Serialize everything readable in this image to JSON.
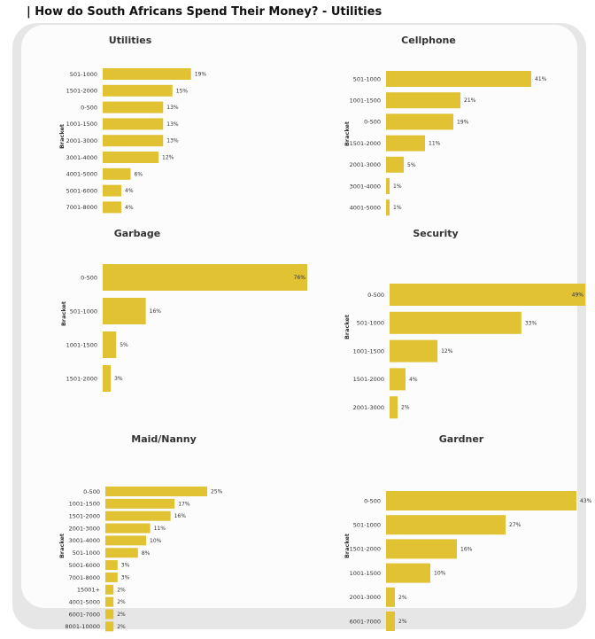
{
  "page": {
    "title": "| How do South Africans Spend Their Money? - Utilities"
  },
  "colors": {
    "bar": "#e0c232",
    "card": "#fcfcfc",
    "panel": "#e6e6e6"
  },
  "chart_data": [
    {
      "id": "utilities",
      "type": "bar",
      "orientation": "horizontal",
      "title": "Utilities",
      "ylabel": "Bracket",
      "categories": [
        "501-1000",
        "1501-2000",
        "0-500",
        "1001-1500",
        "2001-3000",
        "3001-4000",
        "4001-5000",
        "5001-6000",
        "7001-8000"
      ],
      "values": [
        19,
        15,
        13,
        13,
        13,
        12,
        6,
        4,
        4
      ],
      "labels": [
        "19%",
        "15%",
        "13%",
        "13%",
        "13%",
        "12%",
        "6%",
        "4%",
        "4%"
      ],
      "xlim": [
        0,
        40
      ]
    },
    {
      "id": "cellphone",
      "type": "bar",
      "orientation": "horizontal",
      "title": "Cellphone",
      "ylabel": "Bracket",
      "categories": [
        "501-1000",
        "1001-1500",
        "0-500",
        "1501-2000",
        "2001-3000",
        "3001-4000",
        "4001-5000"
      ],
      "values": [
        41,
        21,
        19,
        11,
        5,
        1,
        1
      ],
      "labels": [
        "41%",
        "21%",
        "19%",
        "11%",
        "5%",
        "1%",
        "1%"
      ],
      "xlim": [
        0,
        50
      ]
    },
    {
      "id": "garbage",
      "type": "bar",
      "orientation": "horizontal",
      "title": "Garbage",
      "ylabel": "Bracket",
      "categories": [
        "0-500",
        "501-1000",
        "1001-1500",
        "1501-2000"
      ],
      "values": [
        76,
        16,
        5,
        3
      ],
      "labels": [
        "76%",
        "16%",
        "5%",
        "3%"
      ],
      "xlim": [
        0,
        76
      ]
    },
    {
      "id": "security",
      "type": "bar",
      "orientation": "horizontal",
      "title": "Security",
      "ylabel": "Bracket",
      "categories": [
        "0-500",
        "501-1000",
        "1001-1500",
        "1501-2000",
        "2001-3000"
      ],
      "values": [
        49,
        33,
        12,
        4,
        2
      ],
      "labels": [
        "49%",
        "33%",
        "12%",
        "4%",
        "2%"
      ],
      "xlim": [
        0,
        49
      ]
    },
    {
      "id": "maid",
      "type": "bar",
      "orientation": "horizontal",
      "title": "Maid/Nanny",
      "ylabel": "Bracket",
      "categories": [
        "0-500",
        "1001-1500",
        "1501-2000",
        "2001-3000",
        "3001-4000",
        "501-1000",
        "5001-6000",
        "7001-8000",
        "15001+",
        "4001-5000",
        "6001-7000",
        "8001-10000"
      ],
      "values": [
        25,
        17,
        16,
        11,
        10,
        8,
        3,
        3,
        2,
        2,
        2,
        2
      ],
      "labels": [
        "25%",
        "17%",
        "16%",
        "11%",
        "10%",
        "8%",
        "3%",
        "3%",
        "2%",
        "2%",
        "2%",
        "2%"
      ],
      "xlim": [
        0,
        50
      ]
    },
    {
      "id": "gardner",
      "type": "bar",
      "orientation": "horizontal",
      "title": "Gardner",
      "ylabel": "Bracket",
      "categories": [
        "0-500",
        "501-1000",
        "1501-2000",
        "1001-1500",
        "2001-3000",
        "6001-7000"
      ],
      "values": [
        43,
        27,
        16,
        10,
        2,
        2
      ],
      "labels": [
        "43%",
        "27%",
        "16%",
        "10%",
        "2%",
        "2%"
      ],
      "xlim": [
        0,
        50
      ]
    }
  ]
}
